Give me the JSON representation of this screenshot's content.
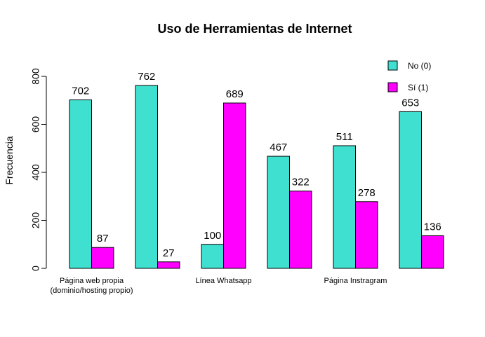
{
  "chart_data": {
    "type": "bar",
    "title": "Uso de Herramientas de Internet",
    "xlabel": "",
    "ylabel": "Frecuencia",
    "ylim": [
      0,
      800
    ],
    "yticks": [
      "0",
      "200",
      "400",
      "600",
      "800"
    ],
    "grid": false,
    "legend_position": "top-right",
    "category_labels": [
      [
        "Página web propia",
        "(dominio/hosting propio)"
      ],
      [
        ""
      ],
      [
        "Línea Whatsapp"
      ],
      [
        ""
      ],
      [
        "Página Instragram"
      ],
      [
        ""
      ]
    ],
    "series": [
      {
        "name": "No (0)",
        "color": "#40E0D0",
        "values": [
          702,
          762,
          100,
          467,
          511,
          653
        ]
      },
      {
        "name": "Sí (1)",
        "color": "#FF00FF",
        "values": [
          87,
          27,
          689,
          322,
          278,
          136
        ]
      }
    ]
  }
}
